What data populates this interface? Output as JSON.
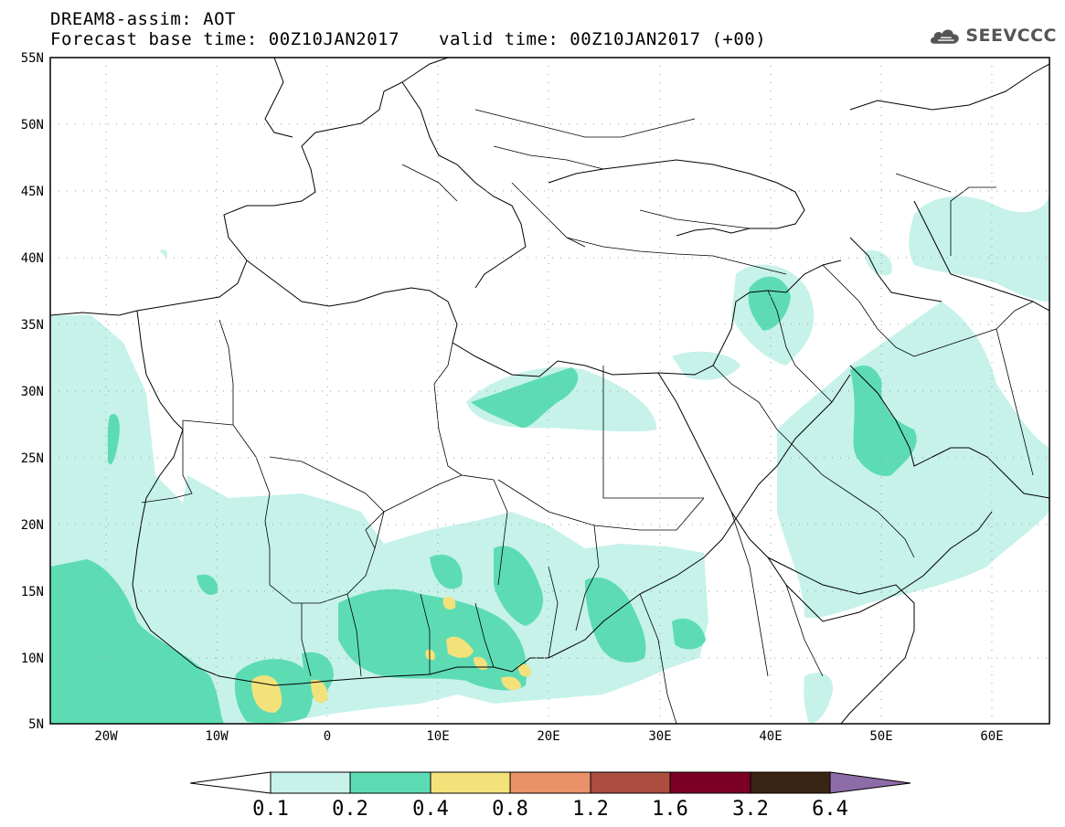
{
  "header": {
    "line1": "DREAM8-assim: AOT",
    "line2": "Forecast base time: 00Z10JAN2017",
    "valid": "valid time: 00Z10JAN2017 (+00)"
  },
  "logo": {
    "text": "SEEVCCC",
    "icon": "cloud-logo-icon"
  },
  "axes": {
    "lat_labels": [
      "55N",
      "50N",
      "45N",
      "40N",
      "35N",
      "30N",
      "25N",
      "20N",
      "15N",
      "10N",
      "5N"
    ],
    "lon_labels": [
      "20W",
      "10W",
      "0",
      "10E",
      "20E",
      "30E",
      "40E",
      "50E",
      "60E"
    ],
    "lon_range": [
      -25,
      65
    ],
    "lat_range": [
      5,
      55
    ]
  },
  "colorbar": {
    "labels": [
      "0.1",
      "0.2",
      "0.4",
      "0.8",
      "1.2",
      "1.6",
      "3.2",
      "6.4"
    ],
    "colors": [
      "#ffffff",
      "#c6f2ea",
      "#5ddcb4",
      "#f3e27a",
      "#e99169",
      "#ac4e3f",
      "#7c0025",
      "#3a2413",
      "#8d6ca7"
    ]
  },
  "colors": {
    "aot_01_02": "#c6f2ea",
    "aot_02_04": "#5ddcb4",
    "aot_04_08": "#f3e27a"
  }
}
